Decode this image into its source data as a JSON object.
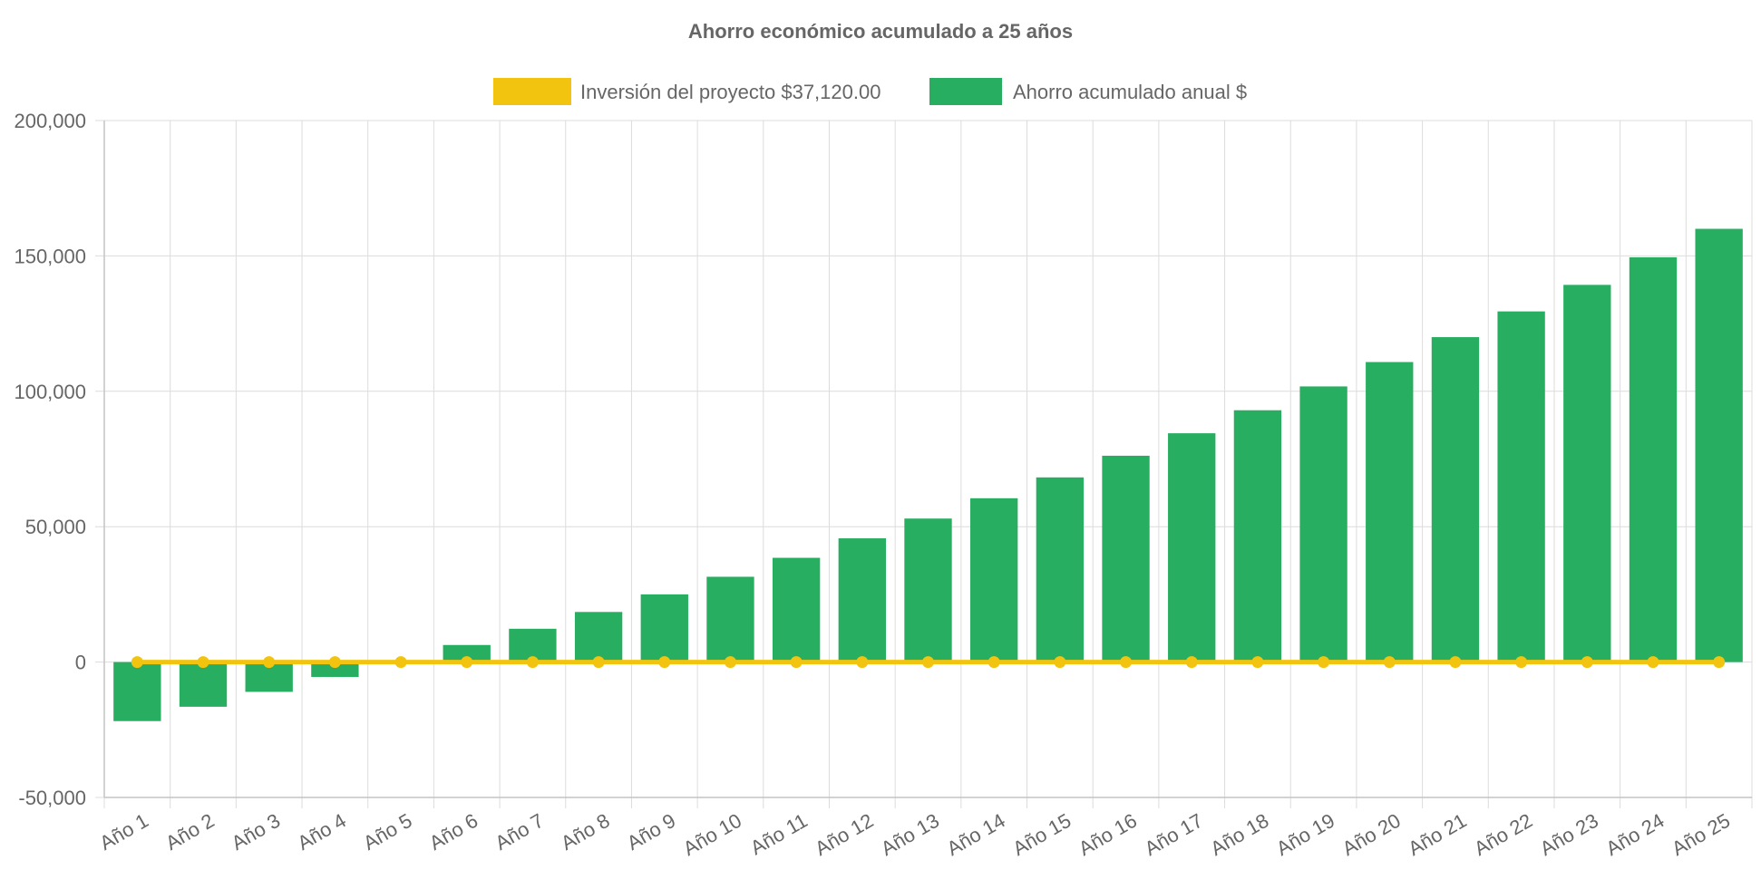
{
  "chart_data": {
    "type": "bar",
    "title": "Ahorro económico acumulado a 25 años",
    "xlabel": "",
    "ylabel": "",
    "ylim": [
      -50000,
      200000
    ],
    "yticks": [
      -50000,
      0,
      50000,
      100000,
      150000,
      200000
    ],
    "ytick_labels": [
      "-50,000",
      "0",
      "50,000",
      "100,000",
      "150,000",
      "200,000"
    ],
    "grid": true,
    "legend_position": "top-center",
    "categories": [
      "Año 1",
      "Año 2",
      "Año 3",
      "Año 4",
      "Año 5",
      "Año 6",
      "Año 7",
      "Año 8",
      "Año 9",
      "Año 10",
      "Año 11",
      "Año 12",
      "Año 13",
      "Año 14",
      "Año 15",
      "Año 16",
      "Año 17",
      "Año 18",
      "Año 19",
      "Año 20",
      "Año 21",
      "Año 22",
      "Año 23",
      "Año 24",
      "Año 25"
    ],
    "series": [
      {
        "name": "Inversión del proyecto $37,120.00",
        "type": "line",
        "color": "#f2c40f",
        "values": [
          0,
          0,
          0,
          0,
          0,
          0,
          0,
          0,
          0,
          0,
          0,
          0,
          0,
          0,
          0,
          0,
          0,
          0,
          0,
          0,
          0,
          0,
          0,
          0,
          0
        ]
      },
      {
        "name": "Ahorro acumulado anual $",
        "type": "bar",
        "color": "#27ae60",
        "values": [
          -21800,
          -16500,
          -11000,
          -5500,
          0,
          6300,
          12300,
          18500,
          25000,
          31500,
          38500,
          45700,
          53000,
          60500,
          68200,
          76200,
          84500,
          93000,
          101800,
          110800,
          120000,
          129500,
          139300,
          149500,
          160000
        ]
      }
    ]
  }
}
